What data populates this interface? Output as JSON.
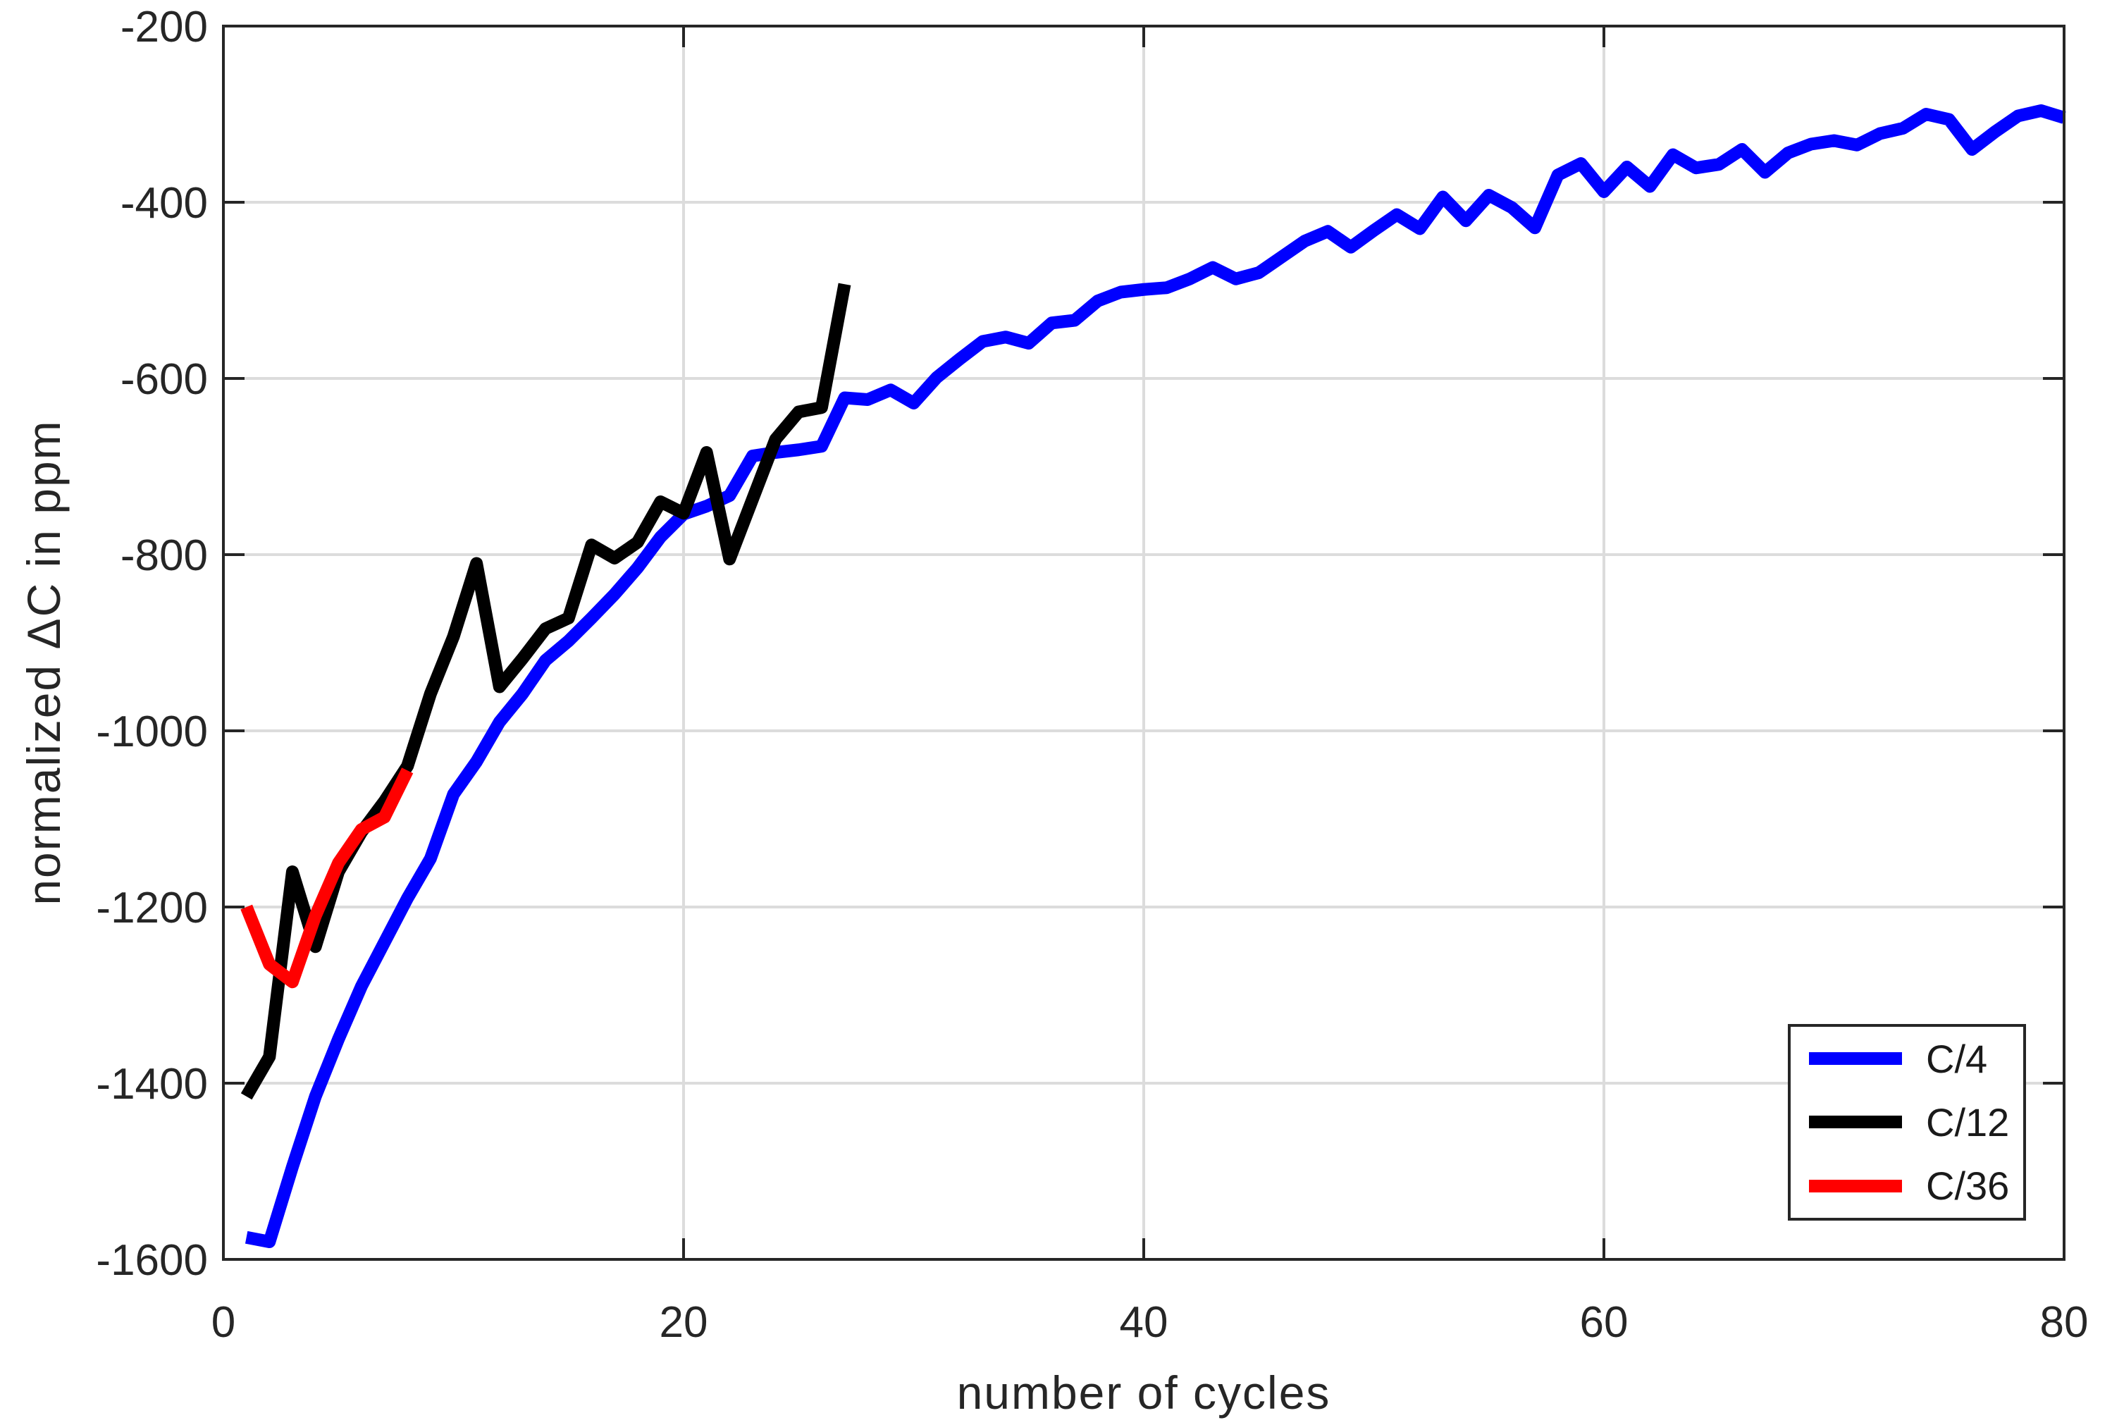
{
  "chart_data": {
    "type": "line",
    "title": "",
    "xlabel": "number of cycles",
    "ylabel": "normalized ΔC in ppm",
    "xlim": [
      0,
      80
    ],
    "ylim": [
      -1600,
      -200
    ],
    "xticks": [
      0,
      20,
      40,
      60,
      80
    ],
    "yticks": [
      -1600,
      -1400,
      -1200,
      -1000,
      -800,
      -600,
      -400,
      -200
    ],
    "grid": true,
    "legend_position": "bottom-right",
    "background": "#ffffff",
    "axis_color": "#262626",
    "grid_color": "#dcdcdc",
    "series": [
      {
        "name": "C/4",
        "color": "#0000ff",
        "x": [
          1,
          2,
          3,
          4,
          5,
          6,
          7,
          8,
          9,
          10,
          11,
          12,
          13,
          14,
          15,
          16,
          17,
          18,
          19,
          20,
          21,
          22,
          23,
          24,
          25,
          26,
          27,
          28,
          29,
          30,
          31,
          32,
          33,
          34,
          35,
          36,
          37,
          38,
          39,
          40,
          41,
          42,
          43,
          44,
          45,
          46,
          47,
          48,
          49,
          50,
          51,
          52,
          53,
          54,
          55,
          56,
          57,
          58,
          59,
          60,
          61,
          62,
          63,
          64,
          65,
          66,
          67,
          68,
          69,
          70,
          71,
          72,
          73,
          74,
          75,
          76,
          77,
          78,
          79,
          80
        ],
        "values": [
          -1575,
          -1580,
          -1495,
          -1415,
          -1350,
          -1290,
          -1240,
          -1190,
          -1145,
          -1072,
          -1035,
          -990,
          -958,
          -920,
          -898,
          -872,
          -845,
          -815,
          -780,
          -754,
          -745,
          -733,
          -688,
          -684,
          -681,
          -677,
          -622,
          -624,
          -613,
          -628,
          -599,
          -578,
          -558,
          -553,
          -560,
          -537,
          -534,
          -512,
          -502,
          -499,
          -497,
          -487,
          -474,
          -487,
          -480,
          -462,
          -444,
          -433,
          -451,
          -432,
          -414,
          -430,
          -394,
          -421,
          -392,
          -406,
          -429,
          -369,
          -356,
          -388,
          -360,
          -382,
          -346,
          -361,
          -357,
          -340,
          -366,
          -344,
          -334,
          -330,
          -335,
          -322,
          -316,
          -300,
          -306,
          -340,
          -320,
          -302,
          -296,
          -304
        ]
      },
      {
        "name": "C/12",
        "color": "#000000",
        "x": [
          1,
          2,
          3,
          4,
          5,
          6,
          7,
          8,
          9,
          10,
          11,
          12,
          13,
          14,
          15,
          16,
          17,
          18,
          19,
          20,
          21,
          22,
          23,
          24,
          25,
          26,
          27
        ],
        "values": [
          -1415,
          -1370,
          -1160,
          -1245,
          -1160,
          -1115,
          -1080,
          -1040,
          -958,
          -893,
          -810,
          -950,
          -918,
          -884,
          -872,
          -789,
          -804,
          -786,
          -740,
          -753,
          -684,
          -805,
          -737,
          -669,
          -638,
          -633,
          -493
        ]
      },
      {
        "name": "C/36",
        "color": "#ff0000",
        "x": [
          1,
          2,
          3,
          4,
          5,
          6,
          7,
          8
        ],
        "values": [
          -1200,
          -1265,
          -1285,
          -1210,
          -1150,
          -1112,
          -1098,
          -1045
        ]
      }
    ]
  }
}
